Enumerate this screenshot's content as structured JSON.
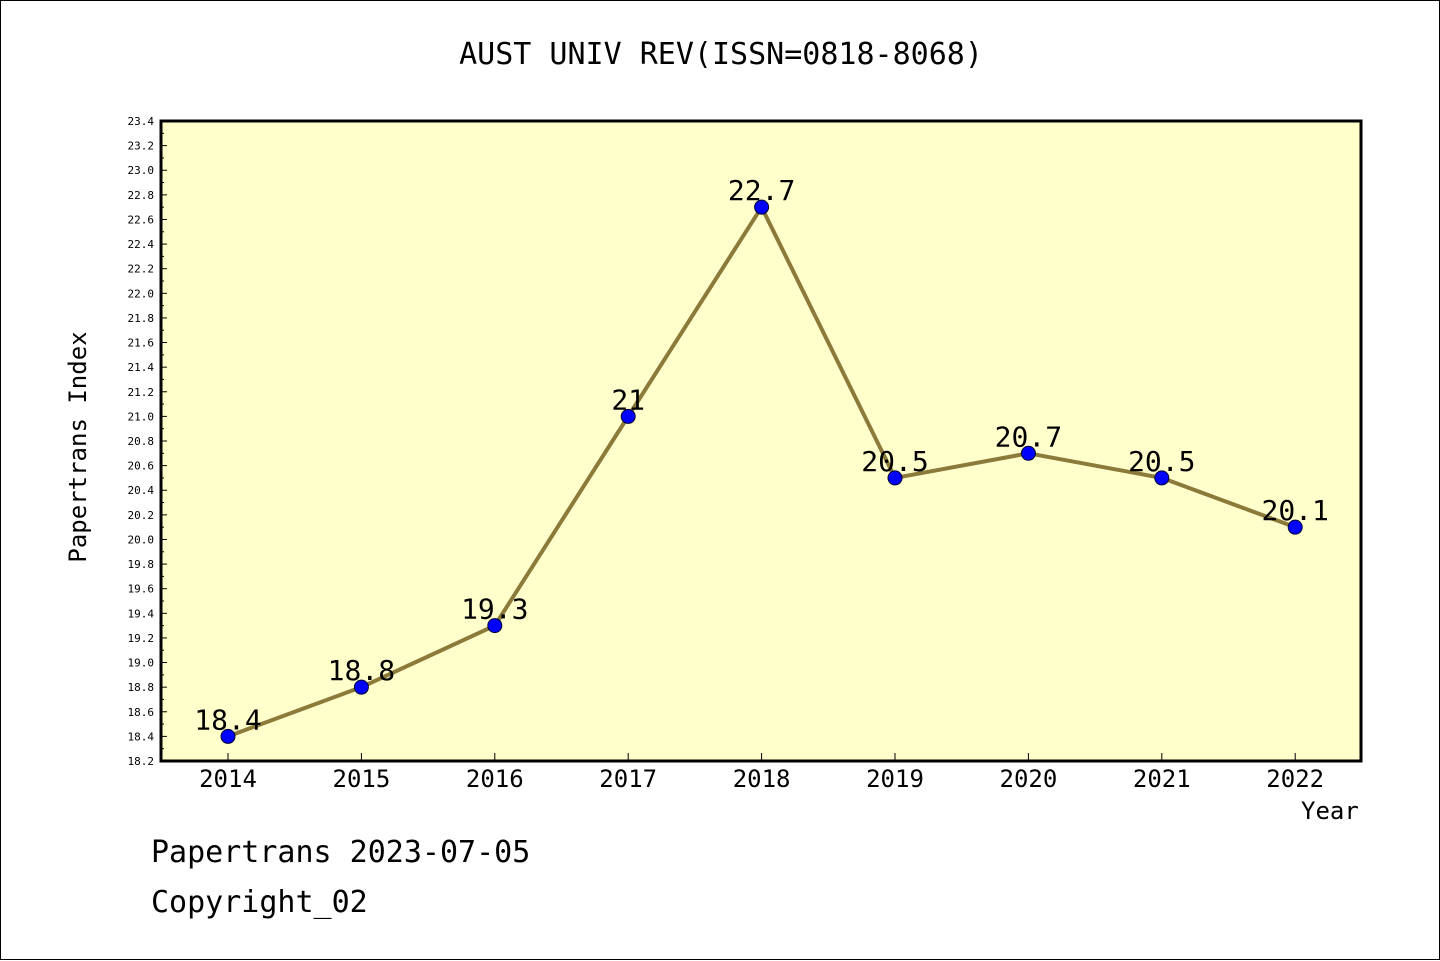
{
  "colors": {
    "plot_background": "#ffffcc",
    "line": "#8b7a3a",
    "marker": "#0000ff",
    "axis": "#000000"
  },
  "chart_data": {
    "type": "line",
    "title": "AUST UNIV REV(ISSN=0818-8068)",
    "xlabel": "Year",
    "ylabel": "Papertrans Index",
    "categories": [
      "2014",
      "2015",
      "2016",
      "2017",
      "2018",
      "2019",
      "2020",
      "2021",
      "2022"
    ],
    "values": [
      18.4,
      18.8,
      19.3,
      21,
      22.7,
      20.5,
      20.7,
      20.5,
      20.1
    ],
    "data_labels": [
      "18.4",
      "18.8",
      "19.3",
      "21",
      "22.7",
      "20.5",
      "20.7",
      "20.5",
      "20.1"
    ],
    "ylim": [
      18.2,
      23.4
    ],
    "ytick_step": 0.2,
    "grid": false,
    "legend": "none"
  },
  "footer": {
    "line1": "Papertrans 2023-07-05",
    "line2": "Copyright_02"
  }
}
